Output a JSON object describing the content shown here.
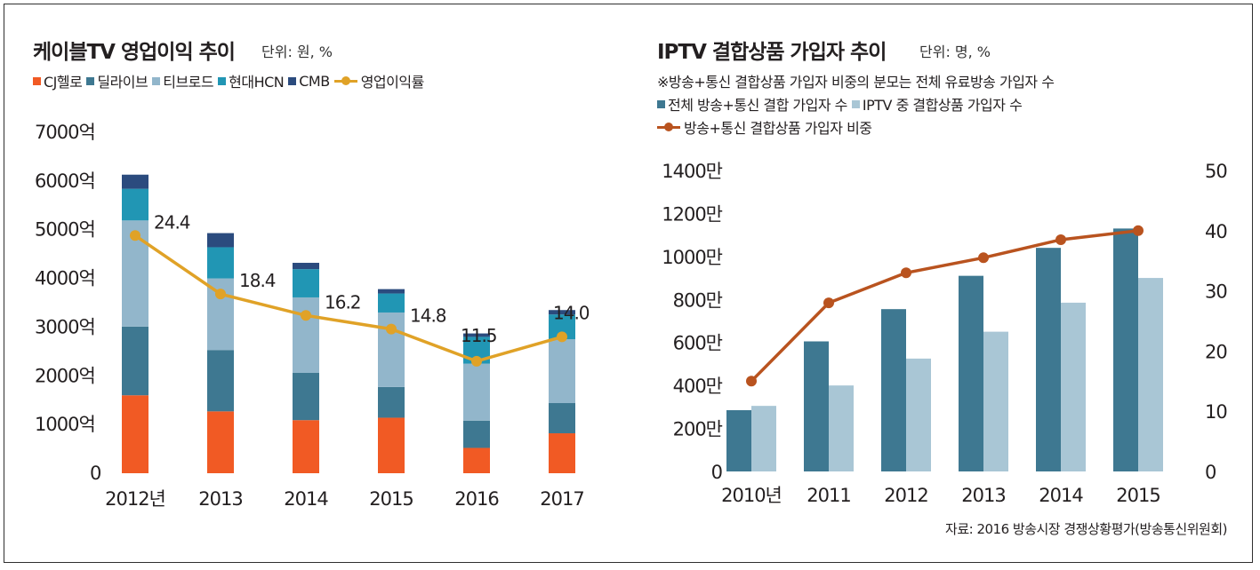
{
  "left_panel": {
    "title": "케이블TV 영업이익 추이",
    "unit": "단위: 원, %",
    "legend": [
      {
        "label": "CJ헬로",
        "color": "#f15a24",
        "kind": "box"
      },
      {
        "label": "딜라이브",
        "color": "#3e7891",
        "kind": "box"
      },
      {
        "label": "티브로드",
        "color": "#92b6cb",
        "kind": "box"
      },
      {
        "label": "현대HCN",
        "color": "#2196b4",
        "kind": "box"
      },
      {
        "label": "CMB",
        "color": "#2b4b7e",
        "kind": "box"
      },
      {
        "label": "영업이익률",
        "color": "#e0a227",
        "kind": "line"
      }
    ]
  },
  "right_panel": {
    "title": "IPTV 결합상품 가입자 추이",
    "unit": "단위: 명, %",
    "note": "※방송+통신 결합상품 가입자 비중의 분모는 전체 유료방송 가입자 수",
    "legend": [
      {
        "label": "전체 방송+통신 결합 가입자 수",
        "color": "#3e7891",
        "kind": "box"
      },
      {
        "label": "IPTV 중 결합상품 가입자 수",
        "color": "#a9c6d5",
        "kind": "box"
      },
      {
        "label": "방송+통신 결합상품 가입자 비중",
        "color": "#b9531f",
        "kind": "line"
      }
    ],
    "source": "자료: 2016 방송시장 경쟁상황평가(방송통신위원회)"
  },
  "chart_data": [
    {
      "type": "bar",
      "stacked": true,
      "categories": [
        "2012년",
        "2013",
        "2014",
        "2015",
        "2016",
        "2017"
      ],
      "y_ticks": [
        "0",
        "1000억",
        "2000억",
        "3000억",
        "4000억",
        "5000억",
        "6000억",
        "7000억"
      ],
      "ylim": [
        0,
        7000
      ],
      "series": [
        {
          "name": "CJ헬로",
          "color": "#f15a24",
          "values": [
            1600,
            1270,
            1090,
            1140,
            520,
            820
          ]
        },
        {
          "name": "딜라이브",
          "color": "#3e7891",
          "values": [
            1410,
            1260,
            970,
            630,
            560,
            620
          ]
        },
        {
          "name": "티브로드",
          "color": "#92b6cb",
          "values": [
            2180,
            1470,
            1550,
            1530,
            1170,
            1310
          ]
        },
        {
          "name": "현대HCN",
          "color": "#2196b4",
          "values": [
            650,
            640,
            580,
            390,
            550,
            510
          ]
        },
        {
          "name": "CMB",
          "color": "#2b4b7e",
          "values": [
            290,
            290,
            130,
            90,
            70,
            90
          ]
        }
      ],
      "line_series": {
        "name": "영업이익률",
        "color": "#e0a227",
        "values": [
          24.4,
          18.4,
          16.2,
          14.8,
          11.5,
          14.0
        ],
        "labels": [
          "24.4",
          "18.4",
          "16.2",
          "14.8",
          "11.5",
          "14.0"
        ],
        "ylim": [
          0,
          35
        ]
      },
      "grid": false
    },
    {
      "type": "bar",
      "categories": [
        "2010년",
        "2011",
        "2012",
        "2013",
        "2014",
        "2015"
      ],
      "y_ticks_left": [
        "0",
        "200만",
        "400만",
        "600만",
        "800만",
        "1000만",
        "1200만",
        "1400만"
      ],
      "ylim_left": [
        0,
        1400
      ],
      "y_ticks_right": [
        "0",
        "10",
        "20",
        "30",
        "40",
        "50"
      ],
      "ylim_right": [
        0,
        50
      ],
      "series": [
        {
          "name": "전체 방송+통신 결합 가입자 수",
          "color": "#3e7891",
          "values": [
            285,
            605,
            755,
            910,
            1040,
            1130
          ]
        },
        {
          "name": "IPTV 중 결합상품 가입자 수",
          "color": "#a9c6d5",
          "values": [
            305,
            400,
            525,
            650,
            785,
            900
          ]
        }
      ],
      "line_series": {
        "name": "방송+통신 결합상품 가입자 비중",
        "color": "#b9531f",
        "values": [
          15.0,
          28.0,
          33.0,
          35.5,
          38.5,
          40.0
        ]
      },
      "grid": false
    }
  ]
}
